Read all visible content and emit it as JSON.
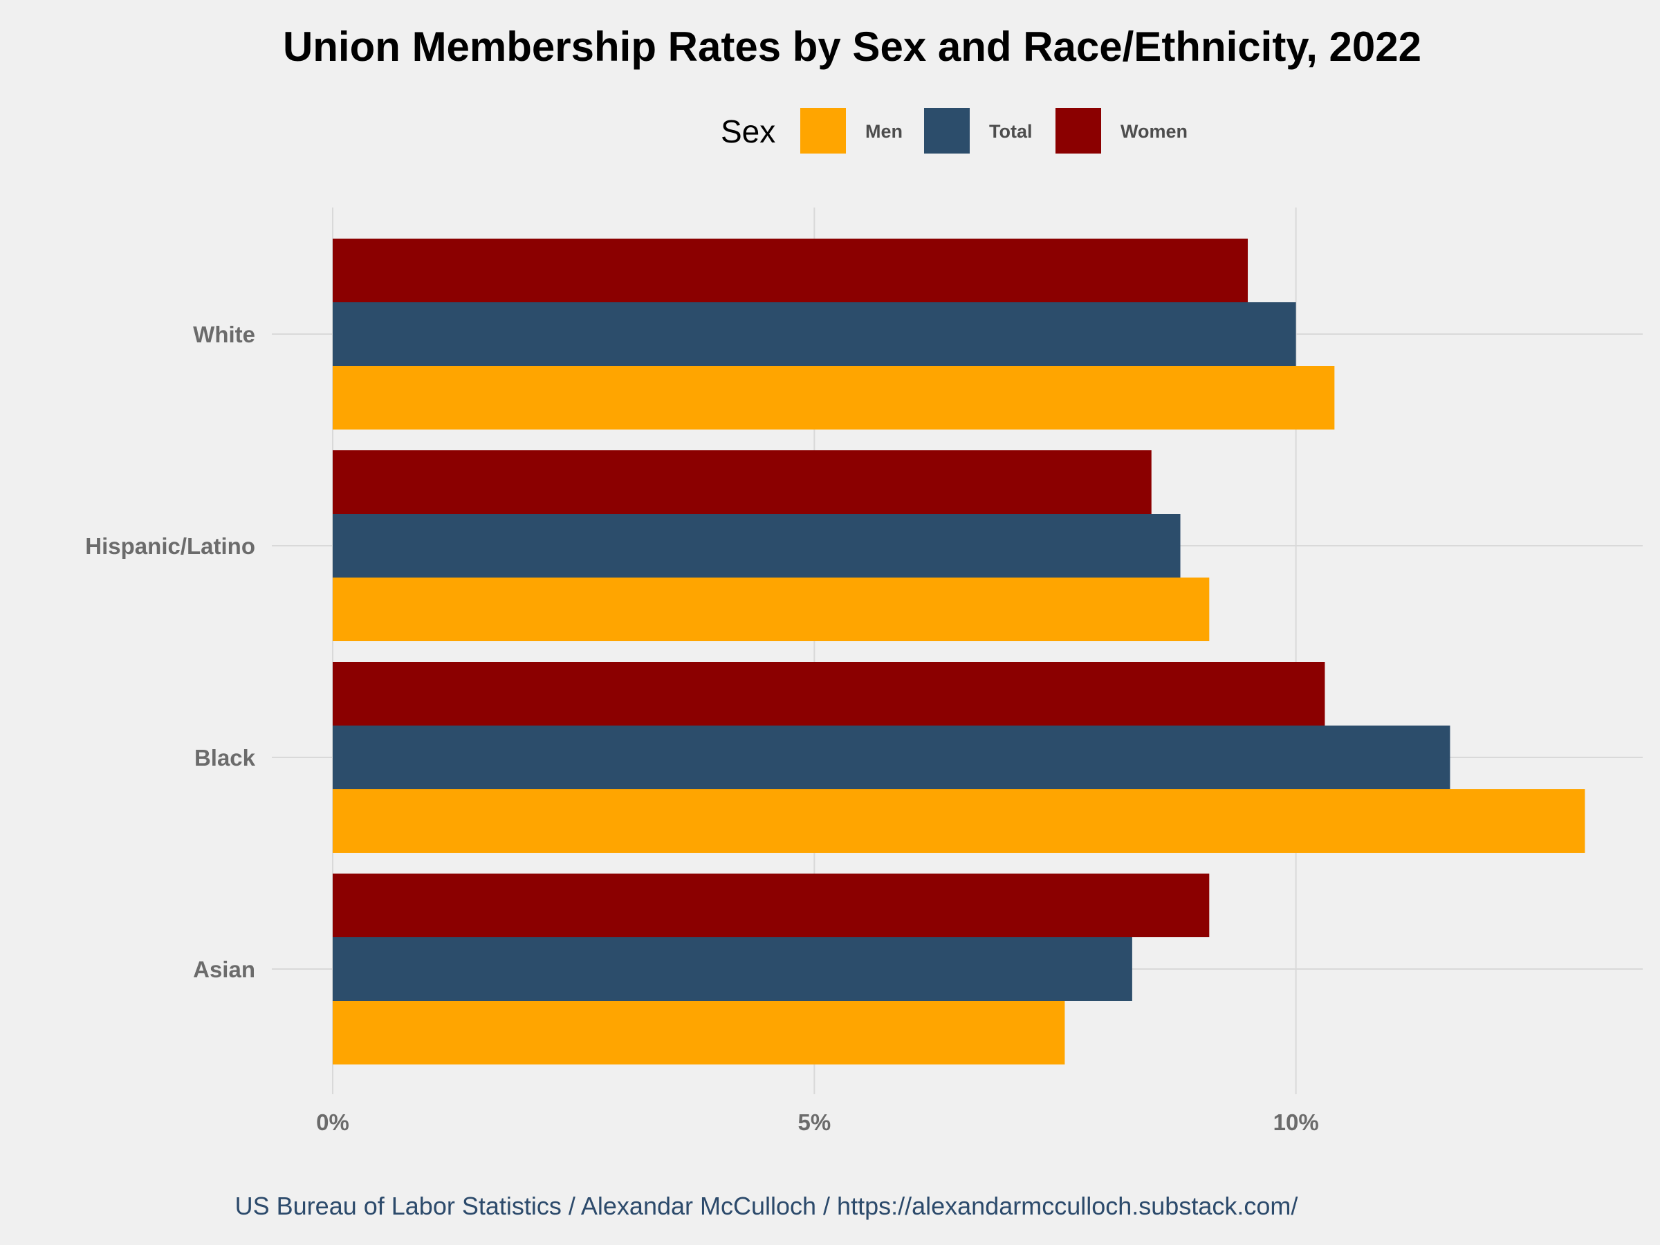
{
  "chart_data": {
    "type": "bar",
    "orientation": "horizontal",
    "title": "Union Membership Rates by Sex and Race/Ethnicity, 2022",
    "legend_title": "Sex",
    "legend_position": "top",
    "categories": [
      "White",
      "Hispanic/Latino",
      "Black",
      "Asian"
    ],
    "series": [
      {
        "name": "Men",
        "color": "#ffa500",
        "values": [
          10.4,
          9.1,
          13.0,
          7.6
        ]
      },
      {
        "name": "Total",
        "color": "#2c4d6b",
        "values": [
          10.0,
          8.8,
          11.6,
          8.3
        ]
      },
      {
        "name": "Women",
        "color": "#8b0000",
        "values": [
          9.5,
          8.5,
          10.3,
          9.1
        ]
      }
    ],
    "bar_stack_order": [
      "Women",
      "Total",
      "Men"
    ],
    "xlim": [
      0,
      13.6
    ],
    "xticks": [
      0,
      5,
      10
    ],
    "xtick_labels": [
      "0%",
      "5%",
      "10%"
    ],
    "grid": true,
    "caption": "US Bureau of Labor Statistics / Alexandar McCulloch / https://alexandarmcculloch.substack.com/"
  }
}
